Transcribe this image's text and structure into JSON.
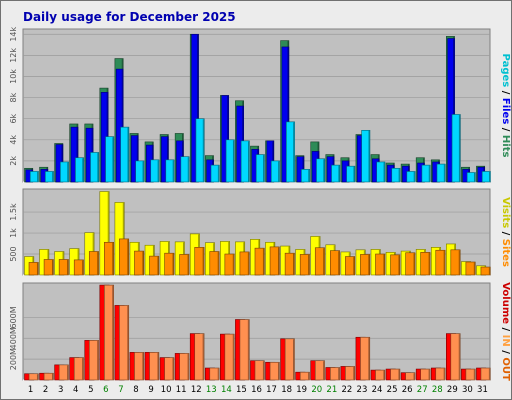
{
  "chart_data": {
    "type": "bar",
    "title": "Daily usage for December 2025",
    "days": [
      "1",
      "2",
      "3",
      "4",
      "5",
      "6",
      "7",
      "8",
      "9",
      "10",
      "11",
      "12",
      "13",
      "14",
      "15",
      "16",
      "17",
      "18",
      "19",
      "20",
      "21",
      "22",
      "23",
      "24",
      "25",
      "26",
      "27",
      "28",
      "29",
      "30",
      "31"
    ],
    "weekend_days": [
      "6",
      "7",
      "13",
      "14",
      "20",
      "21",
      "27",
      "28"
    ],
    "colors": {
      "hits": "#2e8b57",
      "files": "#0000ee",
      "pages": "#00d8ff",
      "visits": "#ffff00",
      "sites": "#ff8c00",
      "kbytes": "#ff0000",
      "kbytes_in": "#ffa040",
      "kbytes_out": "#e06000",
      "weekday_label": "#000000",
      "weekend_label": "#008000",
      "panel": "#c0c0c0",
      "title": "#0000b0"
    },
    "panels": [
      {
        "id": "hits-files-pages",
        "ylim": [
          0,
          14500
        ],
        "ticks": [
          {
            "v": 2000,
            "label": "2k"
          },
          {
            "v": 4000,
            "label": "4k"
          },
          {
            "v": 6000,
            "label": "6k"
          },
          {
            "v": 8000,
            "label": "8k"
          },
          {
            "v": 10000,
            "label": "10k"
          },
          {
            "v": 12000,
            "label": "12k"
          },
          {
            "v": 14000,
            "label": "14k"
          }
        ],
        "side_label": [
          {
            "text": "Pages",
            "color": "#00c0d0"
          },
          {
            "text": " / ",
            "color": "#000000"
          },
          {
            "text": "Files",
            "color": "#0000ee"
          },
          {
            "text": " / ",
            "color": "#000000"
          },
          {
            "text": "Hits",
            "color": "#2e8b57"
          }
        ],
        "series": [
          {
            "name": "Hits",
            "color": "#2e8b57",
            "values": [
              1300,
              1400,
              3650,
              5500,
              5500,
              8900,
              11700,
              4600,
              3800,
              4500,
              4600,
              14000,
              2500,
              8200,
              7700,
              3400,
              3900,
              13400,
              2500,
              3800,
              2600,
              2300,
              4500,
              2600,
              1800,
              1700,
              2300,
              2100,
              13800,
              1400,
              1500
            ]
          },
          {
            "name": "Files",
            "color": "#0000ee",
            "values": [
              1150,
              1200,
              3550,
              5200,
              5100,
              8500,
              10700,
              4400,
              3500,
              4300,
              3900,
              14000,
              2100,
              8200,
              7200,
              3100,
              3900,
              12800,
              2400,
              2900,
              2400,
              2000,
              4400,
              2200,
              1600,
              1500,
              1800,
              1900,
              13600,
              1200,
              1400
            ]
          },
          {
            "name": "Pages",
            "color": "#00d8ff",
            "values": [
              1000,
              1000,
              1900,
              2300,
              2800,
              4300,
              5200,
              2000,
              2100,
              2100,
              2400,
              6000,
              1600,
              4000,
              3900,
              2600,
              2000,
              5700,
              1200,
              2200,
              1600,
              1500,
              4900,
              1900,
              1300,
              1000,
              1600,
              1700,
              6400,
              900,
              1000
            ]
          }
        ]
      },
      {
        "id": "visits-sites",
        "ylim": [
          0,
          2050
        ],
        "ticks": [
          {
            "v": 500,
            "label": "500"
          },
          {
            "v": 1000,
            "label": "1k"
          },
          {
            "v": 1500,
            "label": "1.5k"
          }
        ],
        "side_label": [
          {
            "text": "Visits",
            "color": "#c8c800"
          },
          {
            "text": " / ",
            "color": "#000000"
          },
          {
            "text": "Sites",
            "color": "#ff8c00"
          }
        ],
        "series": [
          {
            "name": "Visits",
            "color": "#ffff00",
            "values": [
              440,
              610,
              560,
              630,
              1010,
              1990,
              1730,
              780,
              710,
              800,
              790,
              980,
              770,
              800,
              790,
              850,
              780,
              690,
              610,
              920,
              720,
              550,
              600,
              610,
              540,
              570,
              610,
              660,
              740,
              320,
              220
            ]
          },
          {
            "name": "Sites",
            "color": "#ff8c00",
            "values": [
              300,
              370,
              370,
              360,
              560,
              780,
              860,
              570,
              450,
              520,
              490,
              660,
              560,
              500,
              550,
              640,
              670,
              520,
              490,
              650,
              580,
              440,
              490,
              500,
              480,
              530,
              540,
              590,
              600,
              310,
              190
            ]
          }
        ]
      },
      {
        "id": "volume-in-out",
        "ylim": [
          0,
          930
        ],
        "ticks": [
          {
            "v": 200,
            "label": "200M"
          },
          {
            "v": 400,
            "label": "400M"
          },
          {
            "v": 600,
            "label": "600M"
          }
        ],
        "side_label": [
          {
            "text": "Volume",
            "color": "#cc0000"
          },
          {
            "text": " / ",
            "color": "#000000"
          },
          {
            "text": "IN",
            "color": "#ffa040"
          },
          {
            "text": " / ",
            "color": "#000000"
          },
          {
            "text": "OUT",
            "color": "#e06000"
          }
        ],
        "series": [
          {
            "name": "Volume",
            "color": "#ff0000",
            "values": [
              60,
              65,
              145,
              215,
              380,
              910,
              715,
              265,
              265,
              215,
              255,
              445,
              115,
              440,
              580,
              185,
              170,
              395,
              75,
              185,
              120,
              130,
              410,
              95,
              105,
              70,
              105,
              115,
              445,
              105,
              115
            ]
          },
          {
            "name": "OUT",
            "color": "#ff9050",
            "values": [
              60,
              65,
              145,
              215,
              380,
              910,
              715,
              265,
              265,
              215,
              255,
              445,
              115,
              440,
              580,
              185,
              170,
              395,
              75,
              185,
              120,
              130,
              410,
              95,
              105,
              70,
              105,
              115,
              445,
              105,
              115
            ]
          }
        ]
      }
    ]
  }
}
